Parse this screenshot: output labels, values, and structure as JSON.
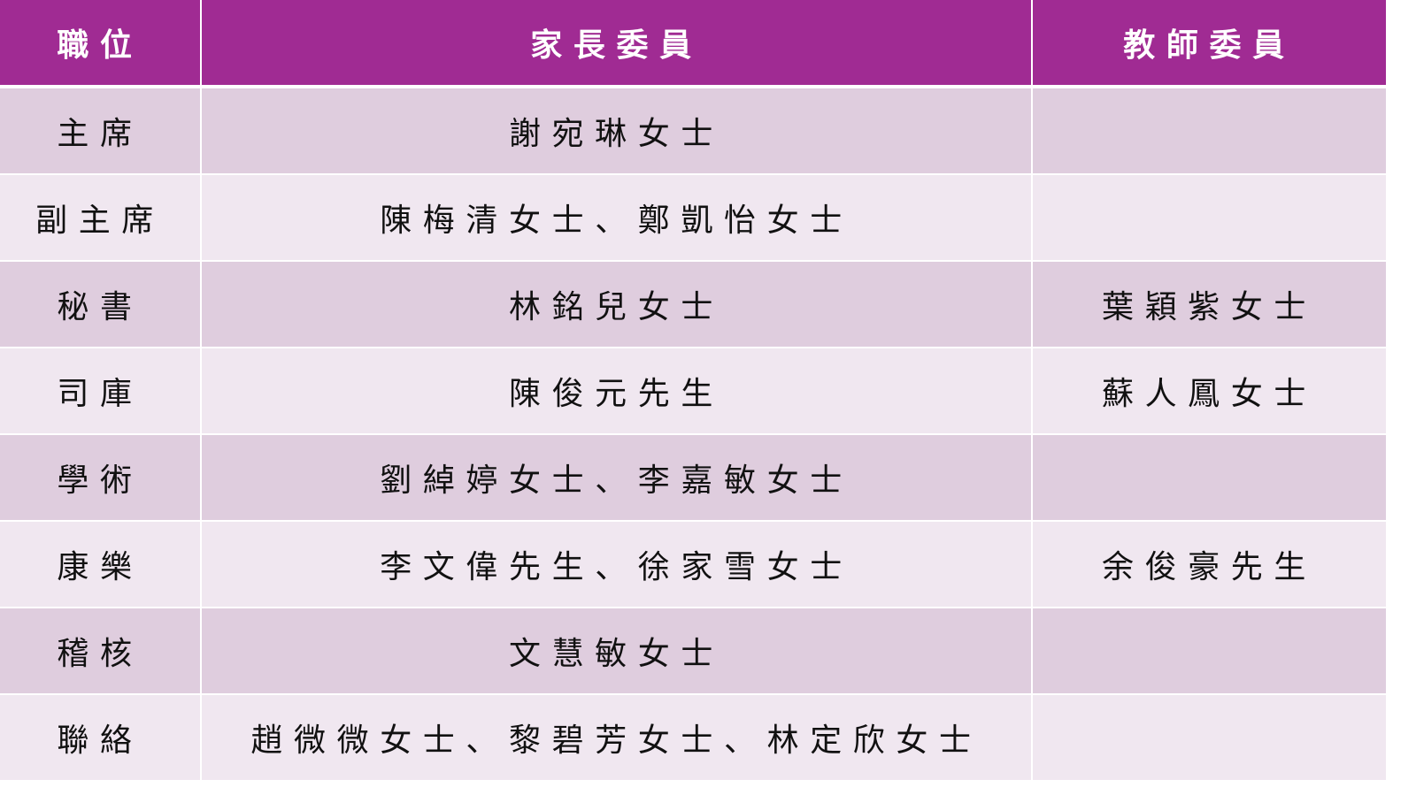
{
  "header": {
    "position": "職位",
    "parents": "家長委員",
    "teachers": "教師委員"
  },
  "colors": {
    "header_bg": "#a02b93",
    "row_odd": "#dfcdde",
    "row_even": "#f0e7f0"
  },
  "rows": [
    {
      "position": "主席",
      "parents": "謝宛琳女士",
      "teachers": ""
    },
    {
      "position": "副主席",
      "parents": "陳梅清女士、鄭凱怡女士",
      "teachers": ""
    },
    {
      "position": "秘書",
      "parents": "林銘兒女士",
      "teachers": "葉穎紫女士"
    },
    {
      "position": "司庫",
      "parents": "陳俊元先生",
      "teachers": "蘇人鳳女士"
    },
    {
      "position": "學術",
      "parents": "劉綽婷女士、李嘉敏女士",
      "teachers": ""
    },
    {
      "position": "康樂",
      "parents": "李文偉先生、徐家雪女士",
      "teachers": "余俊豪先生"
    },
    {
      "position": "稽核",
      "parents": "文慧敏女士",
      "teachers": ""
    },
    {
      "position": "聯絡",
      "parents": "趙微微女士、黎碧芳女士、林定欣女士",
      "teachers": ""
    }
  ]
}
